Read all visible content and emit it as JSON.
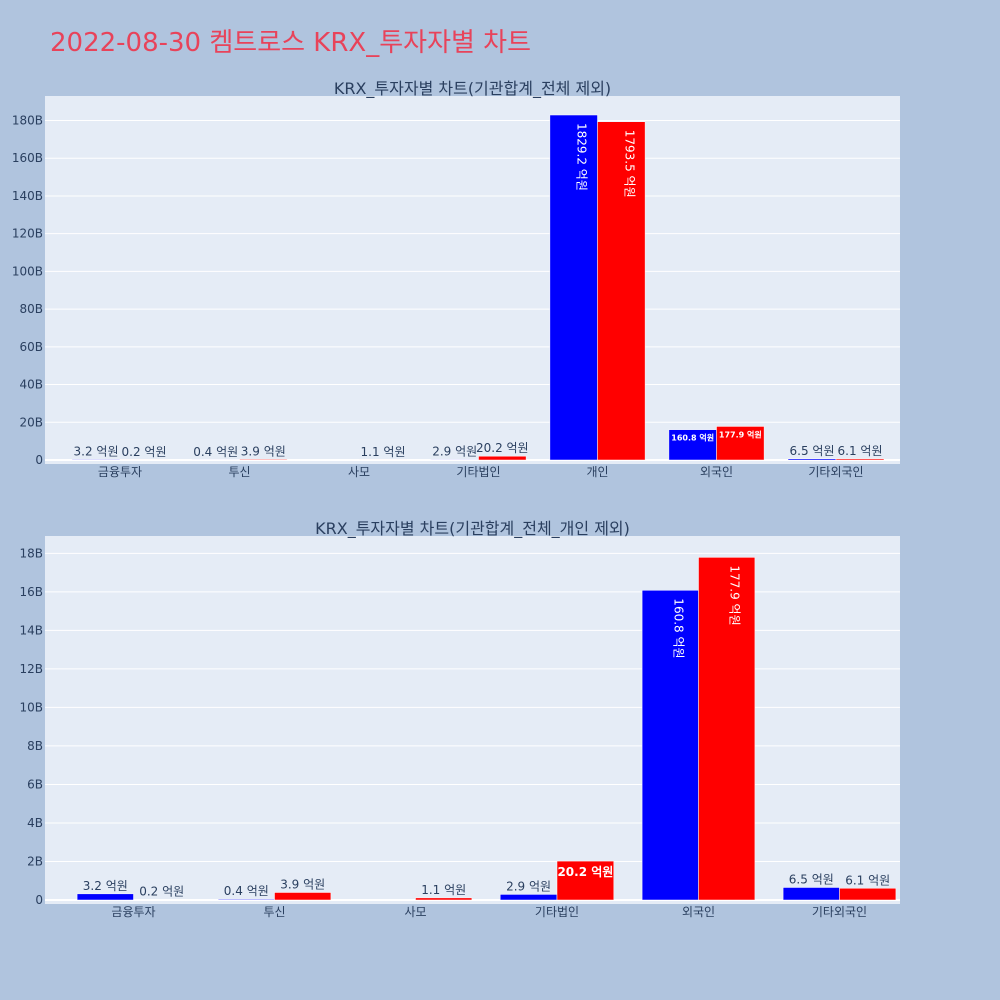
{
  "page_title": "2022-08-30 켐트로스 KRX_투자자별 차트",
  "colors": {
    "background": "#b0c4de",
    "plot_bg": "#e5ecf6",
    "title": "#e8435a",
    "series_a": "#0000ff",
    "series_b": "#ff0000"
  },
  "chart_data": [
    {
      "type": "bar",
      "title": "KRX_투자자별 차트(기관합계_전체 제외)",
      "categories": [
        "금융투자",
        "투신",
        "사모",
        "기타법인",
        "개인",
        "외국인",
        "기타외국인"
      ],
      "series": [
        {
          "color": "#0000ff",
          "values": [
            0.32,
            0.04,
            0,
            0.29,
            182.92,
            16.08,
            0.65
          ],
          "labels": [
            "3.2 억원",
            "0.4 억원",
            "",
            "2.9 억원",
            "1829.2 억원",
            "160.8 억원",
            "6.5 억원"
          ]
        },
        {
          "color": "#ff0000",
          "values": [
            0.02,
            0.39,
            0.11,
            2.02,
            179.35,
            17.79,
            0.61
          ],
          "labels": [
            "0.2 억원",
            "3.9 억원",
            "1.1 억원",
            "20.2 억원",
            "1793.5 억원",
            "177.9 억원",
            "6.1 억원"
          ]
        }
      ],
      "ylim": [
        0,
        193
      ],
      "yticks": [
        0,
        20,
        40,
        60,
        80,
        100,
        120,
        140,
        160,
        180
      ],
      "ytick_labels": [
        "0",
        "20B",
        "40B",
        "60B",
        "80B",
        "100B",
        "120B",
        "140B",
        "160B",
        "180B"
      ]
    },
    {
      "type": "bar",
      "title": "KRX_투자자별 차트(기관합계_전체_개인 제외)",
      "categories": [
        "금융투자",
        "투신",
        "사모",
        "기타법인",
        "외국인",
        "기타외국인"
      ],
      "series": [
        {
          "color": "#0000ff",
          "values": [
            0.32,
            0.04,
            0,
            0.29,
            16.08,
            0.65
          ],
          "labels": [
            "3.2 억원",
            "0.4 억원",
            "",
            "2.9 억원",
            "160.8 억원",
            "6.5 억원"
          ]
        },
        {
          "color": "#ff0000",
          "values": [
            0.02,
            0.39,
            0.11,
            2.02,
            17.79,
            0.61
          ],
          "labels": [
            "0.2 억원",
            "3.9 억원",
            "1.1 억원",
            "20.2 억원",
            "177.9 억원",
            "6.1 억원"
          ]
        }
      ],
      "ylim": [
        0,
        18.9
      ],
      "yticks": [
        0,
        2,
        4,
        6,
        8,
        10,
        12,
        14,
        16,
        18
      ],
      "ytick_labels": [
        "0",
        "2B",
        "4B",
        "6B",
        "8B",
        "10B",
        "12B",
        "14B",
        "16B",
        "18B"
      ]
    }
  ]
}
